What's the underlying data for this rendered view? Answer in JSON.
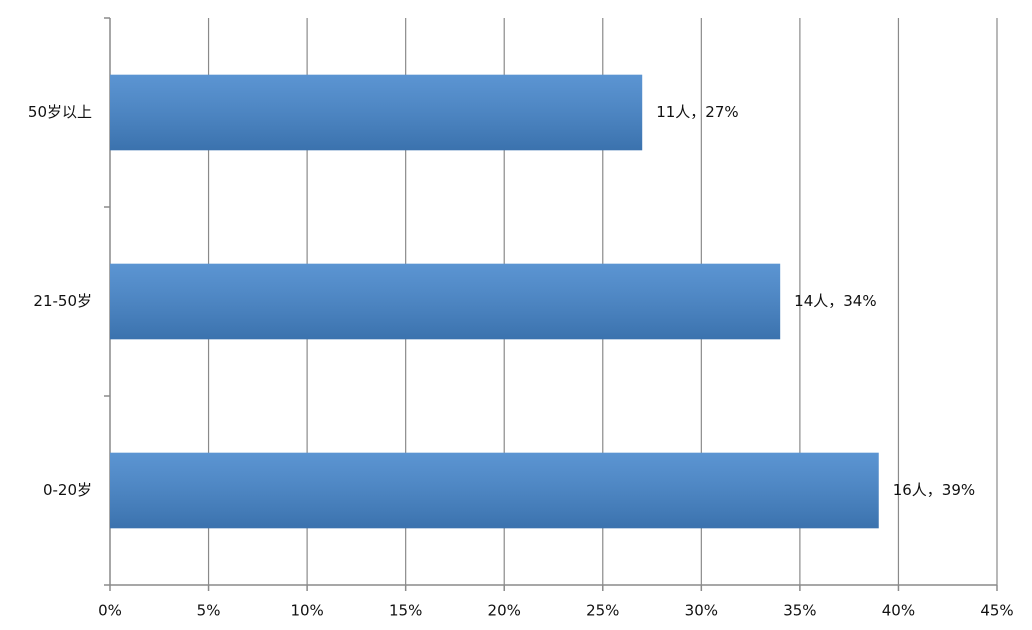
{
  "chart_data": {
    "type": "bar",
    "orientation": "horizontal",
    "categories": [
      "50岁以上",
      "21-50岁",
      "0-20岁"
    ],
    "values": [
      27,
      34,
      39
    ],
    "value_labels": [
      "11人，27%",
      "14人，34%",
      "16人，39%"
    ],
    "color": "#4586cc",
    "xlim": [
      0,
      45
    ],
    "xticks": [
      {
        "value": 0,
        "label": "0%"
      },
      {
        "value": 5,
        "label": "5%"
      },
      {
        "value": 10,
        "label": "10%"
      },
      {
        "value": 15,
        "label": "15%"
      },
      {
        "value": 20,
        "label": "20%"
      },
      {
        "value": 25,
        "label": "25%"
      },
      {
        "value": 30,
        "label": "30%"
      },
      {
        "value": 35,
        "label": "35%"
      },
      {
        "value": 40,
        "label": "40%"
      },
      {
        "value": 45,
        "label": "45%"
      }
    ],
    "grid": true
  }
}
